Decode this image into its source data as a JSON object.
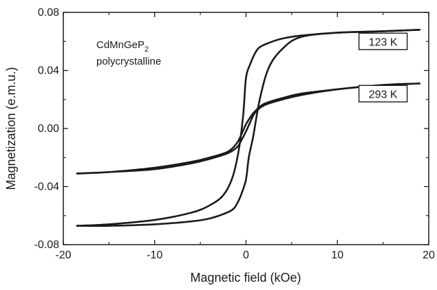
{
  "chart_data": {
    "type": "line",
    "title": "",
    "xlabel": "Magnetic field (kOe)",
    "ylabel": "Magnetization (e.m.u.)",
    "xlim": [
      -20,
      20
    ],
    "ylim": [
      -0.08,
      0.08
    ],
    "x_ticks": [
      -20,
      -10,
      0,
      10,
      20
    ],
    "x_tick_labels": [
      "-20",
      "-10",
      "0",
      "10",
      "20"
    ],
    "y_ticks": [
      -0.08,
      -0.04,
      0.0,
      0.04,
      0.08
    ],
    "y_tick_labels": [
      "-0.08",
      "-0.04",
      "0.00",
      "0.04",
      "0.08"
    ],
    "grid": false,
    "annotations": {
      "compound_main": "CdMnGeP",
      "compound_sub": "2",
      "form": "polycrystalline"
    },
    "series": [
      {
        "name": "123 K",
        "color": "#1a1a1a",
        "branches": [
          {
            "x": [
              -18.5,
              -15,
              -10,
              -6,
              -4,
              -2.5,
              -1.5,
              -0.8,
              -0.3,
              0,
              0.5,
              1,
              1.5,
              2.5,
              4,
              6,
              10,
              15,
              19
            ],
            "y": [
              -0.067,
              -0.066,
              -0.063,
              -0.058,
              -0.053,
              -0.046,
              -0.034,
              -0.015,
              0.01,
              0.035,
              0.045,
              0.052,
              0.056,
              0.059,
              0.062,
              0.064,
              0.066,
              0.067,
              0.068
            ]
          },
          {
            "x": [
              19,
              15,
              10,
              6,
              4,
              2.5,
              1.5,
              0.8,
              0.3,
              0,
              -0.5,
              -1,
              -1.5,
              -2.5,
              -4,
              -6,
              -10,
              -15,
              -18.5
            ],
            "y": [
              0.068,
              0.067,
              0.066,
              0.063,
              0.055,
              0.042,
              0.02,
              -0.005,
              -0.02,
              -0.035,
              -0.045,
              -0.052,
              -0.056,
              -0.059,
              -0.062,
              -0.064,
              -0.066,
              -0.067,
              -0.067
            ]
          }
        ]
      },
      {
        "name": "293 K",
        "color": "#1a1a1a",
        "branches": [
          {
            "x": [
              -18.5,
              -15,
              -10,
              -6,
              -4,
              -2,
              -1,
              -0.5,
              0,
              0.5,
              1,
              2,
              4,
              6,
              10,
              15,
              19
            ],
            "y": [
              -0.031,
              -0.03,
              -0.028,
              -0.024,
              -0.021,
              -0.017,
              -0.013,
              -0.008,
              -0.002,
              0.005,
              0.011,
              0.016,
              0.02,
              0.023,
              0.027,
              0.03,
              0.031
            ]
          },
          {
            "x": [
              19,
              15,
              10,
              6,
              4,
              2,
              1,
              0.5,
              0,
              -0.5,
              -1,
              -2,
              -4,
              -6,
              -10,
              -15,
              -18.5
            ],
            "y": [
              0.031,
              0.03,
              0.027,
              0.024,
              0.021,
              0.017,
              0.012,
              0.008,
              0.003,
              -0.004,
              -0.01,
              -0.016,
              -0.02,
              -0.023,
              -0.027,
              -0.03,
              -0.031
            ]
          }
        ]
      }
    ],
    "series_labels": [
      {
        "text": "123 K",
        "at": {
          "x": 15,
          "y": 0.06
        }
      },
      {
        "text": "293 K",
        "at": {
          "x": 15,
          "y": 0.024
        }
      }
    ]
  }
}
